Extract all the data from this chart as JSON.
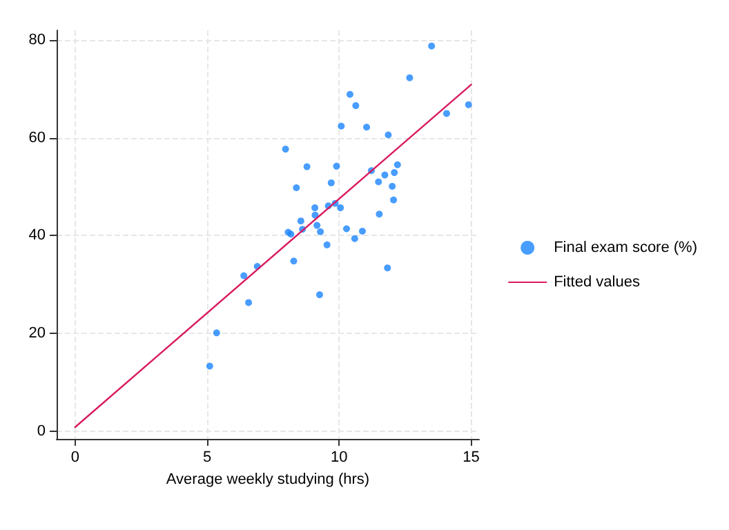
{
  "chart_data": {
    "type": "scatter",
    "xlabel": "Average weekly studying (hrs)",
    "xlim": [
      -0.7,
      15.3
    ],
    "xticks": [
      0,
      5,
      10,
      15
    ],
    "ylim": [
      -1.6,
      82
    ],
    "yticks": [
      0,
      20,
      40,
      60,
      80
    ],
    "grid": true,
    "legend": "right",
    "marker": "circle",
    "series": [
      {
        "name": "Final exam score (%)",
        "color": "#1a85ff",
        "x": [
          7.97,
          8.78,
          8.38,
          8.07,
          8.17,
          8.28,
          8.55,
          8.61,
          9.08,
          9.09,
          9.16,
          9.29,
          9.54,
          9.26,
          9.59,
          9.7,
          9.85,
          9.9,
          10.05,
          10.08,
          10.41,
          10.63,
          10.28,
          10.59,
          10.88,
          11.04,
          11.22,
          11.49,
          11.52,
          11.73,
          11.86,
          11.83,
          12.01,
          12.09,
          12.21,
          12.06,
          12.67,
          13.5,
          14.07,
          14.9,
          5.1,
          5.36,
          6.39,
          6.57,
          6.9
        ],
        "values": [
          57.7,
          54.1,
          49.8,
          40.7,
          40.3,
          34.8,
          43.0,
          41.3,
          45.7,
          44.2,
          42.1,
          40.8,
          38.1,
          27.9,
          46.1,
          50.8,
          46.6,
          54.2,
          45.7,
          62.4,
          68.9,
          66.6,
          41.4,
          39.4,
          40.9,
          62.2,
          53.3,
          51.0,
          44.4,
          52.4,
          60.6,
          33.4,
          50.1,
          52.9,
          54.5,
          47.3,
          72.3,
          78.8,
          65.0,
          66.8,
          13.3,
          20.1,
          31.8,
          26.3,
          33.7
        ]
      },
      {
        "name": "Fitted values",
        "color": "#d81b60",
        "type": "line",
        "marker": "none",
        "line_style": "solid",
        "x": [
          0,
          15
        ],
        "values": [
          0.8,
          70.9
        ]
      }
    ]
  }
}
